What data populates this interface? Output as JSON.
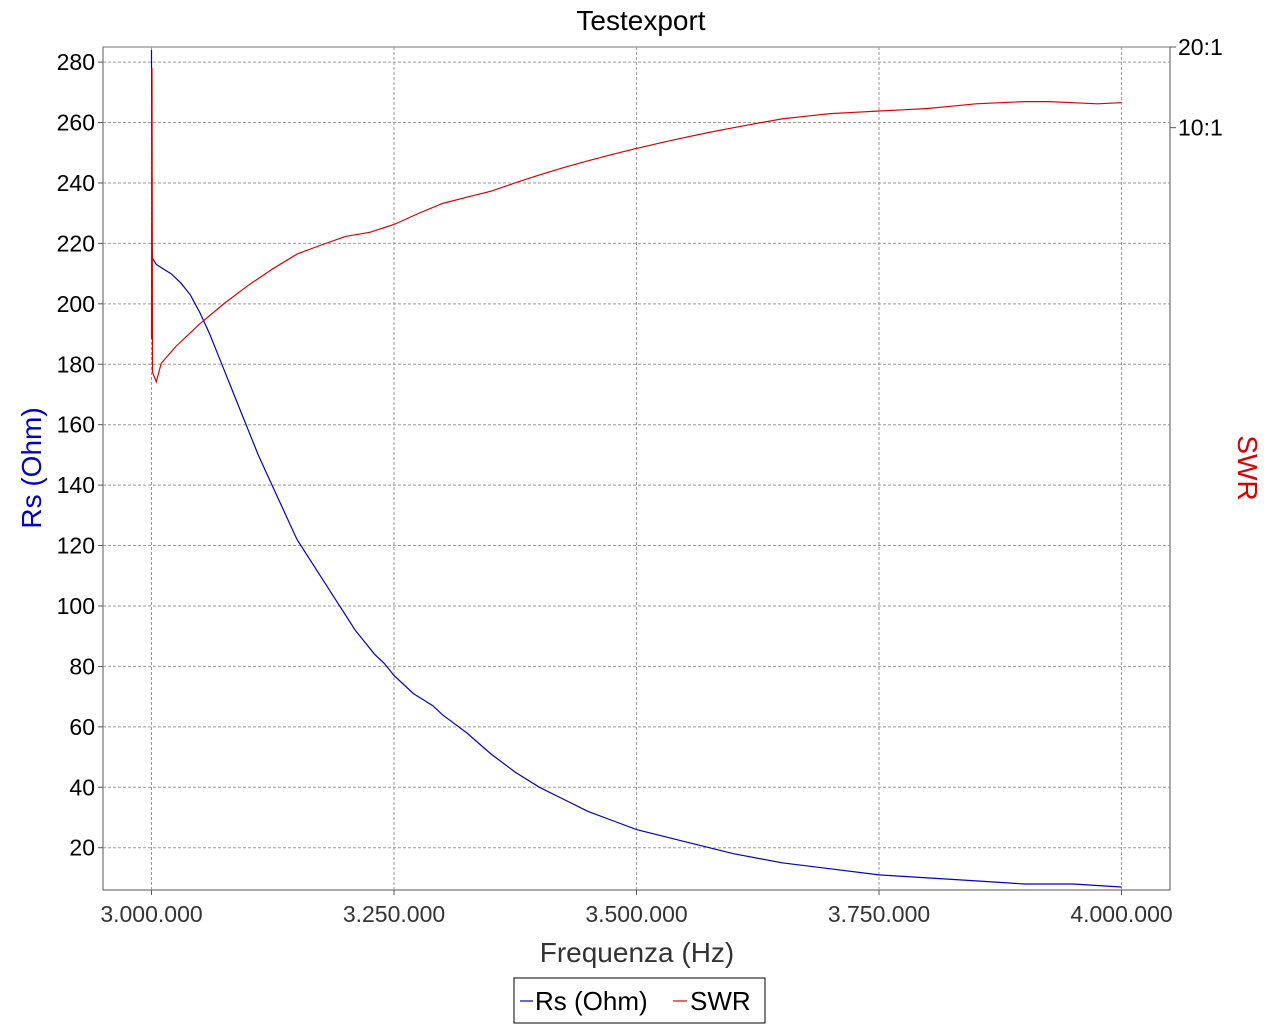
{
  "chart_data": {
    "type": "line",
    "title": "Testexport",
    "xlabel": "Frequenza (Hz)",
    "ylabel_left": "Rs (Ohm)",
    "ylabel_right": "SWR",
    "xlim": [
      2950000,
      4050000
    ],
    "ylim_left": [
      6,
      285
    ],
    "right_axis_ticks": [
      "20:1",
      "10:1"
    ],
    "x_tick_labels": [
      "3.000.000",
      "3.250.000",
      "3.500.000",
      "3.750.000",
      "4.000.000"
    ],
    "x_tick_values": [
      3000000,
      3250000,
      3500000,
      3750000,
      4000000
    ],
    "y_tick_values": [
      20,
      40,
      60,
      80,
      100,
      120,
      140,
      160,
      180,
      200,
      220,
      240,
      260,
      280
    ],
    "grid": true,
    "legend_position": "bottom",
    "series": [
      {
        "name": "Rs (Ohm)",
        "color": "#0000cc",
        "x": [
          3000000,
          3000500,
          3001000,
          3005000,
          3010000,
          3020000,
          3030000,
          3040000,
          3050000,
          3060000,
          3070000,
          3080000,
          3090000,
          3100000,
          3110000,
          3120000,
          3130000,
          3140000,
          3150000,
          3160000,
          3170000,
          3180000,
          3190000,
          3200000,
          3210000,
          3220000,
          3230000,
          3240000,
          3250000,
          3260000,
          3270000,
          3280000,
          3290000,
          3300000,
          3325000,
          3350000,
          3375000,
          3400000,
          3425000,
          3450000,
          3475000,
          3500000,
          3550000,
          3600000,
          3650000,
          3700000,
          3750000,
          3800000,
          3850000,
          3900000,
          3950000,
          4000000
        ],
        "values": [
          284,
          220,
          215,
          213,
          212,
          210,
          207,
          203,
          197,
          190,
          182,
          174,
          166,
          158,
          150,
          143,
          136,
          129,
          122,
          117,
          112,
          107,
          102,
          97,
          92,
          88,
          84,
          81,
          77,
          74,
          71,
          69,
          67,
          64,
          58,
          51,
          45,
          40,
          36,
          32,
          29,
          26,
          22,
          18,
          15,
          13,
          11,
          10,
          9,
          8,
          8,
          7
        ]
      },
      {
        "name": "SWR",
        "color": "#dd0000",
        "x": [
          3000000,
          3000500,
          3001000,
          3005000,
          3010000,
          3025000,
          3050000,
          3075000,
          3100000,
          3125000,
          3150000,
          3175000,
          3200000,
          3225000,
          3250000,
          3275000,
          3300000,
          3325000,
          3350000,
          3375000,
          3400000,
          3425000,
          3450000,
          3475000,
          3500000,
          3525000,
          3550000,
          3575000,
          3600000,
          3625000,
          3650000,
          3675000,
          3700000,
          3725000,
          3750000,
          3775000,
          3800000,
          3825000,
          3850000,
          3875000,
          3900000,
          3925000,
          3950000,
          3975000,
          4000000
        ],
        "values": [
          3.9,
          16,
          3.5,
          3.4,
          3.6,
          3.8,
          4.1,
          4.4,
          4.7,
          5.0,
          5.3,
          5.5,
          5.7,
          5.8,
          6.0,
          6.3,
          6.6,
          6.8,
          7.0,
          7.3,
          7.6,
          7.9,
          8.2,
          8.5,
          8.8,
          9.1,
          9.4,
          9.7,
          10.0,
          10.3,
          10.6,
          10.8,
          11.0,
          11.1,
          11.2,
          11.3,
          11.4,
          11.6,
          11.8,
          11.9,
          12.0,
          12.0,
          11.9,
          11.8,
          11.9
        ]
      }
    ]
  }
}
